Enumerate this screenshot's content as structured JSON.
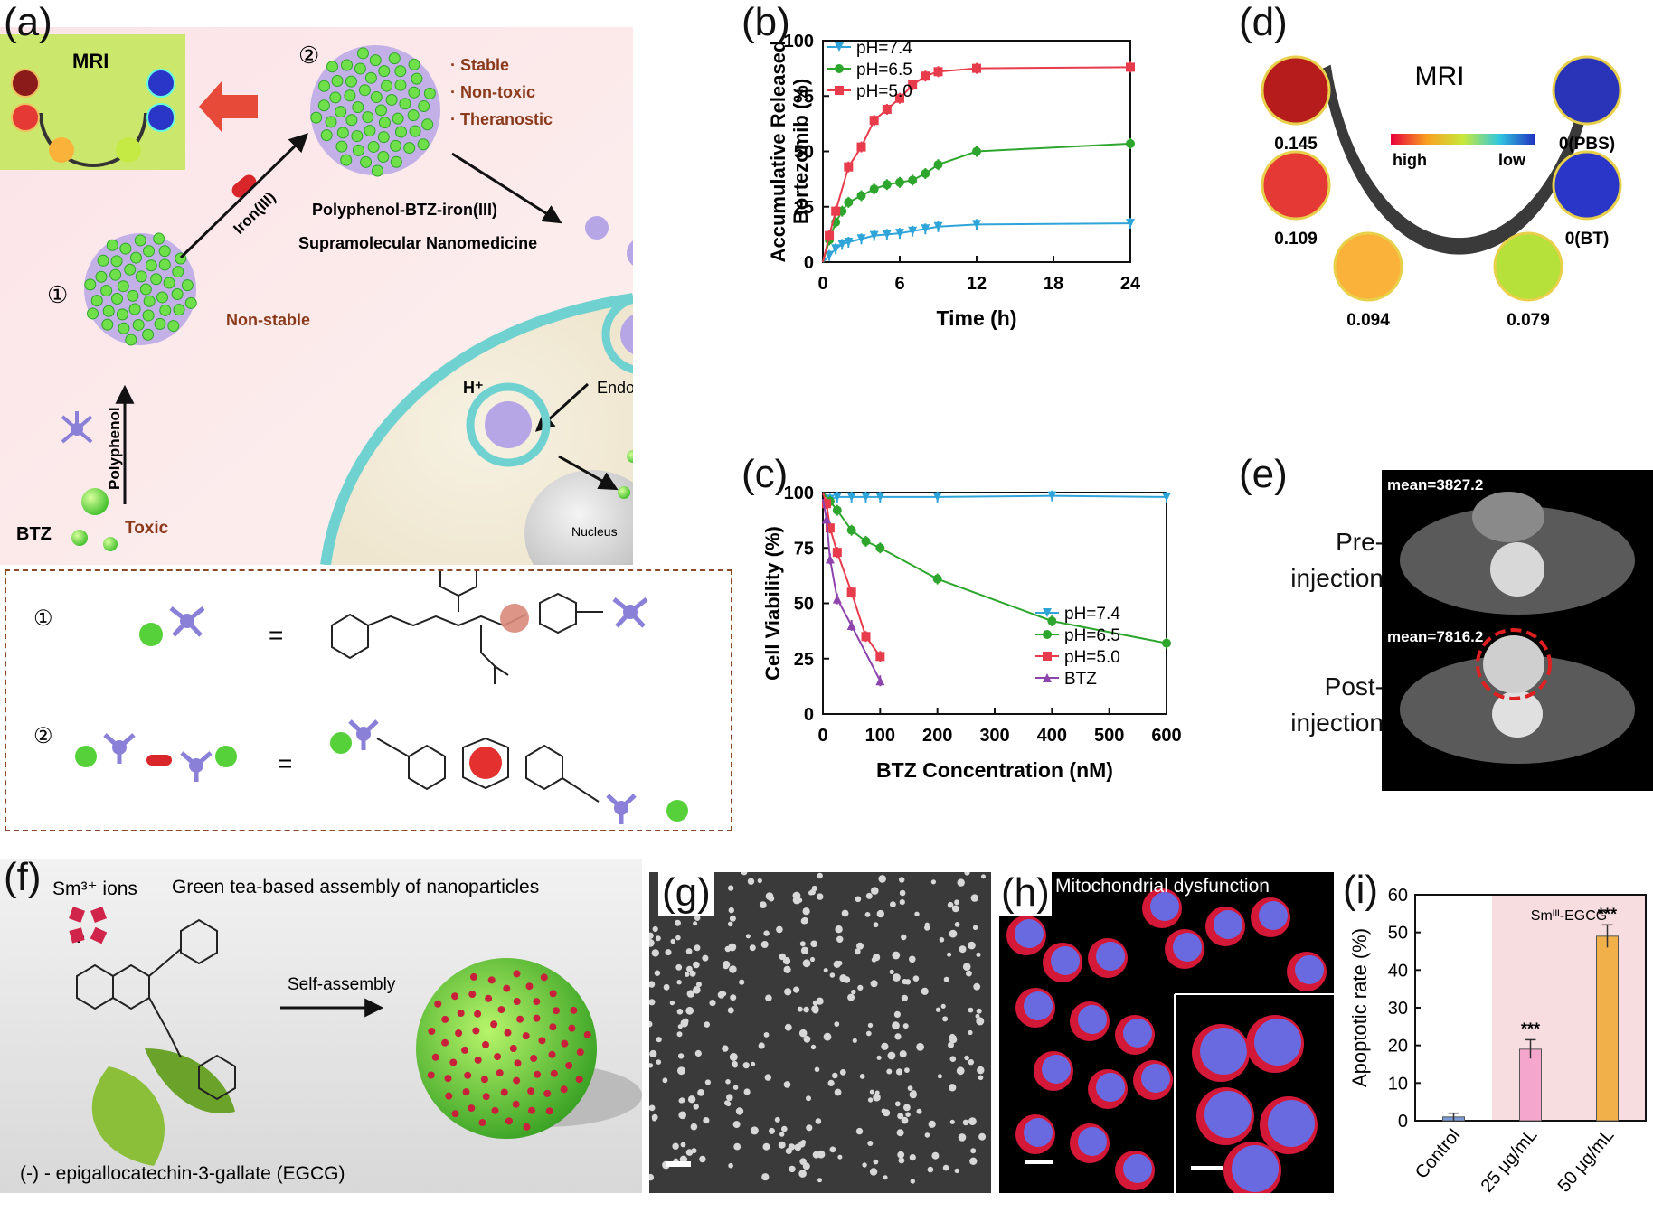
{
  "panels": {
    "a": {
      "label": "(a)",
      "mri": "MRI",
      "step1": "①",
      "step2": "②",
      "props": [
        "· Stable",
        "· Non-toxic",
        "· Theranostic"
      ],
      "iron": "Iron(III)",
      "nano_title": "Polyphenol-BTZ-iron(III)",
      "nano_sub": "Supramolecular Nanomedicine",
      "nonstable": "Non-stable",
      "polyphenol": "Polyphenol",
      "btz": "BTZ",
      "toxic": "Toxic",
      "hplus": "H⁺",
      "endocytosis": "Endocytosis",
      "nucleus": "Nucleus",
      "eq": "="
    },
    "b": {
      "label": "(b)"
    },
    "c": {
      "label": "(c)"
    },
    "d": {
      "label": "(d)",
      "mri": "MRI",
      "high": "high",
      "low": "low",
      "values": [
        "0.145",
        "0.109",
        "0.094",
        "0.079",
        "0(BT)",
        "0(PBS)"
      ],
      "colors": [
        "#b71c1c",
        "#e53935",
        "#fbb23a",
        "#b6e03a",
        "#2a36c8",
        "#2a34b8"
      ]
    },
    "e": {
      "label": "(e)",
      "pre_mean": "mean=3827.2",
      "post_mean": "mean=7816.2",
      "pre_line1": "Pre-",
      "pre_line2": "injection",
      "post_line1": "Post-",
      "post_line2": "injection"
    },
    "f": {
      "label": "(f)",
      "sm_ions": "Sm³⁺ ions",
      "title": "Green tea-based assembly of nanoparticles",
      "self_assembly": "Self-assembly",
      "plus": "+",
      "egcg": "(-) - epigallocatechin-3-gallate (EGCG)"
    },
    "g": {
      "label": "(g)"
    },
    "h": {
      "label": "(h)",
      "title": "Mitochondrial dysfunction"
    },
    "i": {
      "label": "(i)",
      "group_label": "Smᴵᴵᴵ-EGCG"
    }
  },
  "chart_data": [
    {
      "panel": "b",
      "type": "line",
      "xlabel": "Time (h)",
      "ylabel": "Accumulative Released Bortezomib (%)",
      "xlim": [
        0,
        24
      ],
      "ylim": [
        0,
        100
      ],
      "xticks": [
        0,
        6,
        12,
        18,
        24
      ],
      "yticks": [
        0,
        25,
        50,
        75,
        100
      ],
      "legend_position": "top-left",
      "series": [
        {
          "name": "pH=7.4",
          "color": "#2fa4d9",
          "marker": "triangle-down",
          "x": [
            0,
            0.5,
            1,
            1.5,
            2,
            3,
            4,
            5,
            6,
            7,
            8,
            9,
            12,
            24
          ],
          "y": [
            0,
            3,
            6,
            8,
            9,
            10.5,
            12,
            12.5,
            13,
            14,
            15,
            16,
            17,
            17.5
          ]
        },
        {
          "name": "pH=6.5",
          "color": "#2ea62e",
          "marker": "circle",
          "x": [
            0,
            0.5,
            1,
            1.5,
            2,
            3,
            4,
            5,
            6,
            7,
            8,
            9,
            12,
            24
          ],
          "y": [
            0,
            10,
            18,
            23,
            27,
            30,
            33,
            35,
            36,
            37,
            40,
            44,
            50,
            53.5
          ]
        },
        {
          "name": "pH=5.0",
          "color": "#e83b4b",
          "marker": "square",
          "x": [
            0,
            0.5,
            1,
            2,
            3,
            4,
            5,
            6,
            7,
            8,
            9,
            12,
            24
          ],
          "y": [
            0,
            12,
            23,
            43,
            52,
            64,
            69,
            74,
            80,
            84,
            86,
            87.5,
            88
          ]
        }
      ]
    },
    {
      "panel": "c",
      "type": "line",
      "xlabel": "BTZ Concentration (nM)",
      "ylabel": "Cell Viability (%)",
      "xlim": [
        0,
        600
      ],
      "ylim": [
        0,
        100
      ],
      "xticks": [
        0,
        100,
        200,
        300,
        400,
        500,
        600
      ],
      "yticks": [
        0,
        25,
        50,
        75,
        100
      ],
      "legend_position": "bottom-right",
      "series": [
        {
          "name": "pH=7.4",
          "color": "#2fa4d9",
          "marker": "triangle-down",
          "x": [
            0,
            12.5,
            25,
            50,
            75,
            100,
            200,
            400,
            600
          ],
          "y": [
            100,
            97,
            98,
            98,
            98,
            98,
            98,
            98.5,
            98
          ]
        },
        {
          "name": "pH=6.5",
          "color": "#2ea62e",
          "marker": "circle",
          "x": [
            0,
            12.5,
            25,
            50,
            75,
            100,
            200,
            400,
            600
          ],
          "y": [
            100,
            96,
            92,
            83,
            78,
            75,
            61,
            42,
            32
          ]
        },
        {
          "name": "pH=5.0",
          "color": "#e83b4b",
          "marker": "square",
          "x": [
            0,
            6.25,
            12.5,
            25,
            50,
            75,
            100
          ],
          "y": [
            100,
            95,
            84,
            73,
            55,
            35,
            26
          ]
        },
        {
          "name": "BTZ",
          "color": "#8e44ad",
          "marker": "triangle-up",
          "x": [
            0,
            6.25,
            12.5,
            25,
            50,
            100
          ],
          "y": [
            97,
            88,
            70,
            52,
            40,
            15
          ]
        }
      ]
    },
    {
      "panel": "i",
      "type": "bar",
      "xlabel": "",
      "ylabel": "Apoptotic rate (%)",
      "ylim": [
        0,
        60
      ],
      "yticks": [
        0,
        10,
        20,
        30,
        40,
        50,
        60
      ],
      "categories": [
        "Control",
        "25 μg/mL",
        "50 μg/mL"
      ],
      "values": [
        1,
        19,
        49
      ],
      "errors": [
        1,
        2.5,
        3
      ],
      "significance": [
        "",
        "***",
        "***"
      ],
      "colors": [
        "#7a9bd6",
        "#f5a6cc",
        "#f2b04a"
      ]
    }
  ]
}
